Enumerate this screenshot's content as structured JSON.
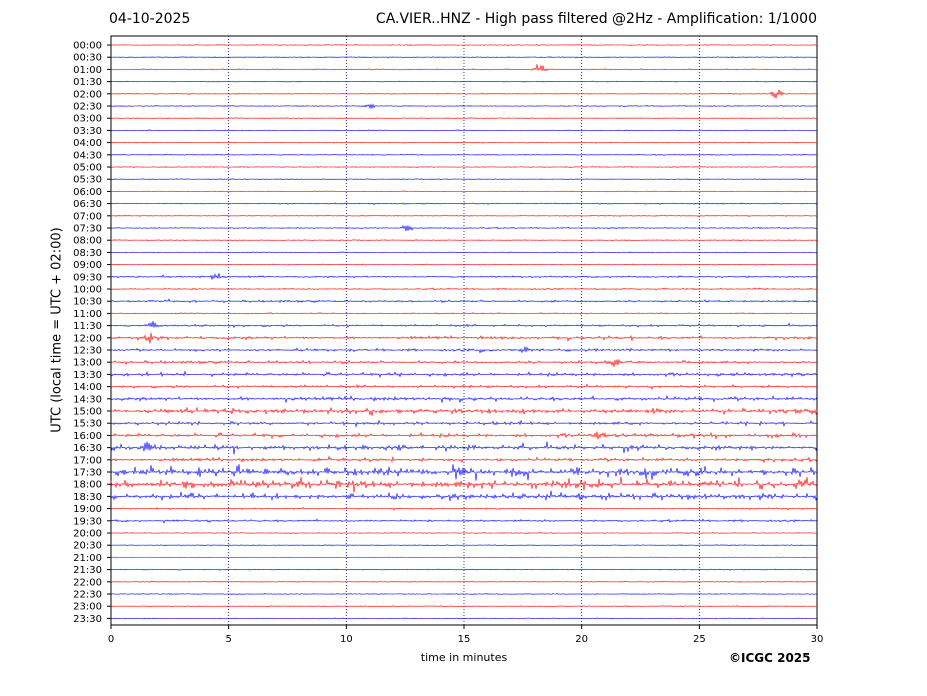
{
  "header": {
    "date": "04-10-2025",
    "title": "CA.VIER..HNZ - High pass filtered @2Hz - Amplification: 1/1000"
  },
  "copyright": "©ICGC 2025",
  "colors": {
    "odd": "#ff0000",
    "even": "#0000ff",
    "grid": "#000080"
  },
  "chart_data": {
    "type": "line",
    "xlabel": "time in minutes",
    "ylabel": "UTC (local time = UTC + 02:00)",
    "xlim": [
      0,
      30
    ],
    "x_ticks": [
      0,
      5,
      10,
      15,
      20,
      25,
      30
    ],
    "y_ticks": [
      "00:00",
      "00:30",
      "01:00",
      "01:30",
      "02:00",
      "02:30",
      "03:00",
      "03:30",
      "04:00",
      "04:30",
      "05:00",
      "05:30",
      "06:00",
      "06:30",
      "07:00",
      "07:30",
      "08:00",
      "08:30",
      "09:00",
      "09:30",
      "10:00",
      "10:30",
      "11:00",
      "11:30",
      "12:00",
      "12:30",
      "13:00",
      "13:30",
      "14:00",
      "14:30",
      "15:00",
      "15:30",
      "16:00",
      "16:30",
      "17:00",
      "17:30",
      "18:00",
      "18:30",
      "19:00",
      "19:30",
      "20:00",
      "20:30",
      "21:00",
      "21:30",
      "22:00",
      "22:30",
      "23:00",
      "23:30"
    ],
    "trace_activity": [
      0.05,
      0.05,
      0.08,
      0.05,
      0.06,
      0.06,
      0.05,
      0.05,
      0.05,
      0.05,
      0.06,
      0.05,
      0.05,
      0.08,
      0.06,
      0.08,
      0.07,
      0.05,
      0.06,
      0.12,
      0.12,
      0.18,
      0.08,
      0.16,
      0.28,
      0.22,
      0.25,
      0.3,
      0.22,
      0.35,
      0.45,
      0.3,
      0.35,
      0.45,
      0.3,
      0.75,
      0.8,
      0.55,
      0.1,
      0.18,
      0.05,
      0.05,
      0.05,
      0.06,
      0.05,
      0.05,
      0.05,
      0.05
    ],
    "events": [
      {
        "row": 2,
        "minute": 18.2,
        "amplitude": 12
      },
      {
        "row": 4,
        "minute": 28.3,
        "amplitude": 7
      },
      {
        "row": 5,
        "minute": 11.0,
        "amplitude": 4
      },
      {
        "row": 15,
        "minute": 12.6,
        "amplitude": 5
      },
      {
        "row": 19,
        "minute": 4.5,
        "amplitude": 6
      },
      {
        "row": 23,
        "minute": 1.8,
        "amplitude": 5
      },
      {
        "row": 24,
        "minute": 1.6,
        "amplitude": 7
      },
      {
        "row": 25,
        "minute": 17.6,
        "amplitude": 4
      },
      {
        "row": 26,
        "minute": 21.4,
        "amplitude": 6
      },
      {
        "row": 32,
        "minute": 20.7,
        "amplitude": 6
      },
      {
        "row": 33,
        "minute": 1.5,
        "amplitude": 7
      },
      {
        "row": 35,
        "minute": 14.8,
        "amplitude": 7
      },
      {
        "row": 36,
        "minute": 3.2,
        "amplitude": 8
      }
    ]
  }
}
